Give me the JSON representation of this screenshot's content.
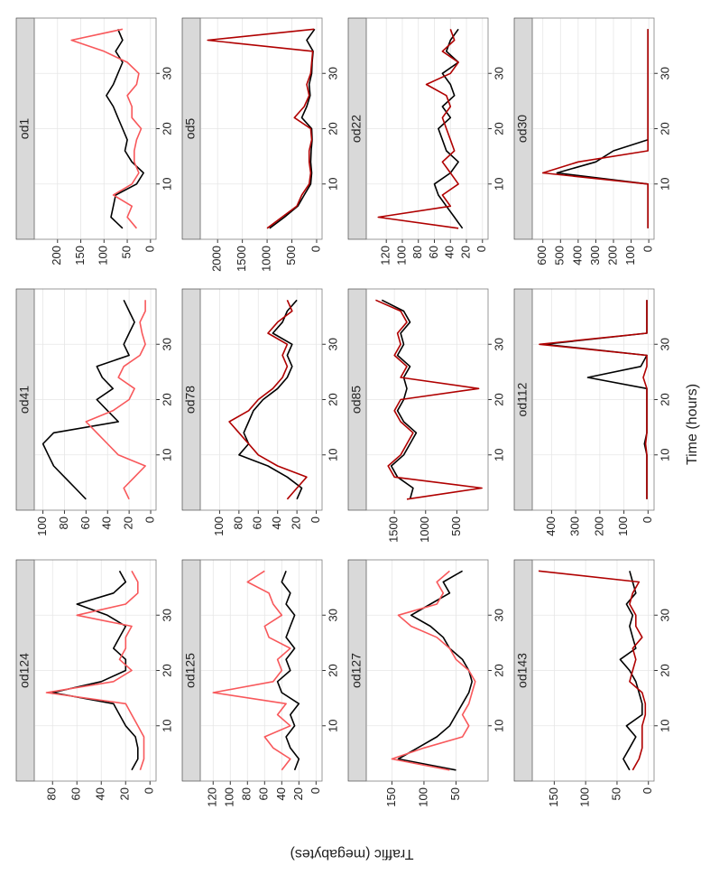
{
  "xlabel": "Time (hours)",
  "ylabel": "Traffic (megabytes)",
  "chart_data": [
    {
      "type": "line",
      "title": "od1",
      "x": [
        2,
        4,
        6,
        8,
        10,
        12,
        14,
        16,
        18,
        20,
        22,
        24,
        26,
        28,
        30,
        32,
        34,
        36,
        38
      ],
      "xlim": [
        0,
        40
      ],
      "xticks": [
        10,
        20,
        30
      ],
      "ylim": [
        -12,
        250
      ],
      "yticks": [
        0,
        50,
        100,
        150,
        200
      ],
      "series": [
        {
          "color": "#000000",
          "values": [
            60,
            85,
            80,
            75,
            30,
            15,
            40,
            55,
            50,
            60,
            70,
            80,
            95,
            80,
            70,
            60,
            75,
            60,
            70
          ]
        },
        {
          "color": "#f8585b",
          "values": [
            30,
            50,
            40,
            80,
            40,
            25,
            35,
            35,
            30,
            20,
            40,
            40,
            50,
            30,
            25,
            50,
            100,
            170,
            60
          ]
        }
      ]
    },
    {
      "type": "line",
      "title": "od5",
      "x": [
        2,
        4,
        6,
        8,
        10,
        12,
        14,
        16,
        18,
        20,
        22,
        24,
        26,
        28,
        30,
        32,
        34,
        36,
        38
      ],
      "xlim": [
        0,
        40
      ],
      "xticks": [
        10,
        20,
        30
      ],
      "ylim": [
        -110,
        2350
      ],
      "yticks": [
        0,
        500,
        1000,
        1500,
        2000
      ],
      "series": [
        {
          "color": "#000000",
          "values": [
            950,
            650,
            380,
            250,
            120,
            100,
            120,
            110,
            90,
            100,
            300,
            200,
            130,
            150,
            100,
            90,
            70,
            200,
            40
          ]
        },
        {
          "color": "#b00000",
          "values": [
            1000,
            700,
            400,
            300,
            150,
            120,
            150,
            150,
            100,
            120,
            450,
            250,
            150,
            200,
            120,
            100,
            80,
            2200,
            50
          ]
        }
      ]
    },
    {
      "type": "line",
      "title": "od22",
      "x": [
        2,
        4,
        6,
        8,
        10,
        12,
        14,
        16,
        18,
        20,
        22,
        24,
        26,
        28,
        30,
        32,
        34,
        36,
        38
      ],
      "xlim": [
        0,
        40
      ],
      "xticks": [
        10,
        20,
        30
      ],
      "ylim": [
        -7,
        145
      ],
      "yticks": [
        0,
        20,
        40,
        60,
        80,
        100,
        120
      ],
      "series": [
        {
          "color": "#000000",
          "values": [
            25,
            35,
            45,
            55,
            60,
            40,
            30,
            45,
            50,
            55,
            40,
            50,
            35,
            40,
            50,
            30,
            45,
            40,
            30
          ]
        },
        {
          "color": "#b00000",
          "values": [
            30,
            130,
            40,
            50,
            30,
            40,
            50,
            35,
            40,
            45,
            50,
            40,
            45,
            70,
            40,
            30,
            50,
            35,
            40
          ]
        }
      ]
    },
    {
      "type": "line",
      "title": "od30",
      "x": [
        2,
        4,
        6,
        8,
        10,
        12,
        14,
        16,
        18,
        20,
        22,
        24,
        26,
        28,
        30,
        32,
        34,
        36,
        38
      ],
      "xlim": [
        0,
        40
      ],
      "xticks": [
        10,
        20,
        30
      ],
      "ylim": [
        -30,
        660
      ],
      "yticks": [
        0,
        100,
        200,
        300,
        400,
        500,
        600
      ],
      "series": [
        {
          "color": "#000000",
          "values": [
            5,
            5,
            5,
            5,
            5,
            520,
            300,
            200,
            5,
            5,
            5,
            5,
            5,
            5,
            5,
            5,
            5,
            5,
            5
          ]
        },
        {
          "color": "#b00000",
          "values": [
            5,
            5,
            5,
            5,
            5,
            600,
            400,
            5,
            5,
            5,
            5,
            5,
            5,
            5,
            5,
            5,
            5,
            5,
            5
          ]
        }
      ]
    },
    {
      "type": "line",
      "title": "od41",
      "x": [
        2,
        4,
        6,
        8,
        10,
        12,
        14,
        16,
        18,
        20,
        22,
        24,
        26,
        28,
        30,
        32,
        34,
        36,
        38
      ],
      "xlim": [
        0,
        40
      ],
      "xticks": [
        10,
        20,
        30
      ],
      "ylim": [
        -5,
        108
      ],
      "yticks": [
        0,
        20,
        40,
        60,
        80,
        100
      ],
      "series": [
        {
          "color": "#000000",
          "values": [
            60,
            70,
            80,
            90,
            95,
            100,
            90,
            30,
            40,
            50,
            35,
            45,
            50,
            20,
            25,
            20,
            15,
            20,
            25
          ]
        },
        {
          "color": "#f8585b",
          "values": [
            20,
            25,
            15,
            5,
            30,
            40,
            50,
            60,
            35,
            20,
            15,
            30,
            25,
            10,
            5,
            8,
            10,
            5,
            5
          ]
        }
      ]
    },
    {
      "type": "line",
      "title": "od78",
      "x": [
        2,
        4,
        6,
        8,
        10,
        12,
        14,
        16,
        18,
        20,
        22,
        24,
        26,
        28,
        30,
        32,
        34,
        36,
        38
      ],
      "xlim": [
        0,
        40
      ],
      "xticks": [
        10,
        20,
        30
      ],
      "ylim": [
        -6,
        120
      ],
      "yticks": [
        0,
        20,
        40,
        60,
        80,
        100
      ],
      "series": [
        {
          "color": "#000000",
          "values": [
            20,
            15,
            30,
            50,
            80,
            70,
            75,
            70,
            65,
            55,
            40,
            30,
            25,
            30,
            25,
            45,
            35,
            30,
            20
          ]
        },
        {
          "color": "#b00000",
          "values": [
            30,
            20,
            10,
            40,
            60,
            70,
            80,
            90,
            70,
            60,
            45,
            35,
            30,
            35,
            30,
            50,
            40,
            25,
            30
          ]
        }
      ]
    },
    {
      "type": "line",
      "title": "od85",
      "x": [
        2,
        4,
        6,
        8,
        10,
        12,
        14,
        16,
        18,
        20,
        22,
        24,
        26,
        28,
        30,
        32,
        34,
        36,
        38
      ],
      "xlim": [
        0,
        40
      ],
      "xticks": [
        10,
        20,
        30
      ],
      "ylim": [
        0,
        1950
      ],
      "yticks": [
        500,
        1000,
        1500
      ],
      "series": [
        {
          "color": "#000000",
          "values": [
            1250,
            1200,
            1450,
            1550,
            1350,
            1250,
            1150,
            1350,
            1450,
            1350,
            1300,
            1350,
            1250,
            1450,
            1350,
            1400,
            1250,
            1350,
            1700
          ]
        },
        {
          "color": "#b00000",
          "values": [
            1300,
            100,
            1500,
            1600,
            1400,
            1300,
            1200,
            1400,
            1500,
            1400,
            150,
            1400,
            1300,
            1500,
            1400,
            1450,
            1300,
            1400,
            1800
          ]
        }
      ]
    },
    {
      "type": "line",
      "title": "od112",
      "x": [
        2,
        4,
        6,
        8,
        10,
        12,
        14,
        16,
        18,
        20,
        22,
        24,
        26,
        28,
        30,
        32,
        34,
        36,
        38
      ],
      "xlim": [
        0,
        40
      ],
      "xticks": [
        10,
        20,
        30
      ],
      "ylim": [
        -25,
        480
      ],
      "yticks": [
        0,
        100,
        200,
        300,
        400
      ],
      "series": [
        {
          "color": "#000000",
          "values": [
            5,
            5,
            5,
            5,
            5,
            15,
            5,
            5,
            5,
            5,
            5,
            250,
            30,
            5,
            430,
            5,
            5,
            5,
            5
          ]
        },
        {
          "color": "#b00000",
          "values": [
            5,
            5,
            5,
            5,
            5,
            10,
            5,
            5,
            5,
            5,
            5,
            20,
            5,
            5,
            450,
            5,
            5,
            5,
            5
          ]
        }
      ]
    },
    {
      "type": "line",
      "title": "od124",
      "x": [
        2,
        4,
        6,
        8,
        10,
        12,
        14,
        16,
        18,
        20,
        22,
        24,
        26,
        28,
        30,
        32,
        34,
        36,
        38
      ],
      "xlim": [
        0,
        40
      ],
      "xticks": [
        10,
        20,
        30
      ],
      "ylim": [
        -5,
        95
      ],
      "yticks": [
        0,
        20,
        40,
        60,
        80
      ],
      "series": [
        {
          "color": "#000000",
          "values": [
            15,
            10,
            10,
            12,
            20,
            25,
            30,
            80,
            40,
            20,
            20,
            30,
            25,
            20,
            35,
            60,
            30,
            20,
            25
          ]
        },
        {
          "color": "#f8585b",
          "values": [
            8,
            5,
            5,
            5,
            10,
            15,
            20,
            85,
            30,
            15,
            25,
            20,
            20,
            15,
            60,
            20,
            10,
            10,
            15
          ]
        }
      ]
    },
    {
      "type": "line",
      "title": "od125",
      "x": [
        2,
        4,
        6,
        8,
        10,
        12,
        14,
        16,
        18,
        20,
        22,
        24,
        26,
        28,
        30,
        32,
        34,
        36,
        38
      ],
      "xlim": [
        0,
        40
      ],
      "xticks": [
        10,
        20,
        30
      ],
      "ylim": [
        -7,
        135
      ],
      "yticks": [
        0,
        20,
        40,
        60,
        80,
        100,
        120
      ],
      "series": [
        {
          "color": "#000000",
          "values": [
            25,
            20,
            30,
            35,
            25,
            30,
            20,
            40,
            45,
            30,
            35,
            25,
            35,
            30,
            25,
            35,
            30,
            40,
            35
          ]
        },
        {
          "color": "#f8585b",
          "values": [
            40,
            30,
            50,
            60,
            30,
            45,
            35,
            120,
            50,
            40,
            45,
            30,
            55,
            60,
            40,
            50,
            55,
            80,
            60
          ]
        }
      ]
    },
    {
      "type": "line",
      "title": "od127",
      "x": [
        2,
        4,
        6,
        8,
        10,
        12,
        14,
        16,
        18,
        20,
        22,
        24,
        26,
        28,
        30,
        32,
        34,
        36,
        38
      ],
      "xlim": [
        0,
        40
      ],
      "xticks": [
        10,
        20,
        30
      ],
      "ylim": [
        0,
        190
      ],
      "yticks": [
        50,
        100,
        150
      ],
      "series": [
        {
          "color": "#000000",
          "values": [
            50,
            140,
            110,
            80,
            60,
            50,
            40,
            30,
            25,
            30,
            40,
            60,
            70,
            90,
            120,
            90,
            60,
            70,
            40
          ]
        },
        {
          "color": "#f8585b",
          "values": [
            60,
            150,
            100,
            40,
            30,
            40,
            30,
            25,
            20,
            30,
            50,
            60,
            80,
            120,
            140,
            80,
            70,
            80,
            60
          ]
        }
      ]
    },
    {
      "type": "line",
      "title": "od143",
      "x": [
        2,
        4,
        6,
        8,
        10,
        12,
        14,
        16,
        18,
        20,
        22,
        24,
        26,
        28,
        30,
        32,
        34,
        36,
        38
      ],
      "xlim": [
        0,
        40
      ],
      "xticks": [
        10,
        20,
        30
      ],
      "ylim": [
        -9,
        185
      ],
      "yticks": [
        0,
        50,
        100,
        150
      ],
      "series": [
        {
          "color": "#000000",
          "values": [
            30,
            40,
            30,
            20,
            35,
            10,
            10,
            15,
            20,
            30,
            45,
            20,
            25,
            30,
            25,
            35,
            20,
            25,
            30
          ]
        },
        {
          "color": "#b00000",
          "values": [
            25,
            15,
            10,
            10,
            10,
            5,
            5,
            10,
            30,
            25,
            20,
            25,
            10,
            20,
            20,
            30,
            25,
            15,
            175
          ]
        }
      ]
    }
  ]
}
